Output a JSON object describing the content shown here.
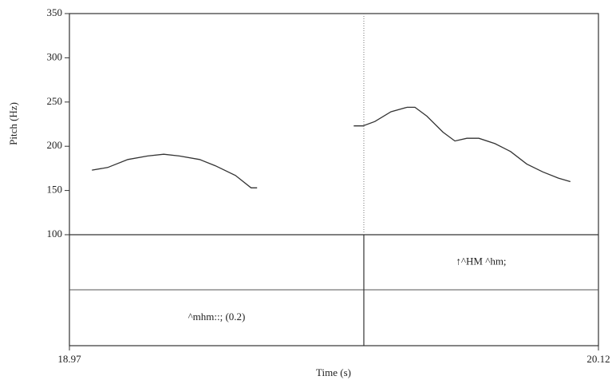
{
  "chart_data": {
    "type": "line",
    "x_label": "Time (s)",
    "y_label": "Pitch (Hz)",
    "x": [
      19.019,
      19.053,
      19.097,
      19.14,
      19.175,
      19.209,
      19.253,
      19.287,
      19.331,
      19.365,
      19.378,
      null,
      19.588,
      19.608,
      19.634,
      19.669,
      19.704,
      19.721,
      19.747,
      19.782,
      19.808,
      19.834,
      19.86,
      19.895,
      19.929,
      19.964,
      19.999,
      20.033,
      20.059
    ],
    "values": [
      173,
      176,
      185,
      189,
      191,
      189,
      185,
      178,
      167,
      153,
      153,
      null,
      223,
      223,
      228,
      239,
      244,
      244,
      234,
      216,
      206,
      209,
      209,
      203,
      194,
      180,
      171,
      164,
      160
    ],
    "color": "#333333",
    "xlim": [
      18.97,
      20.12
    ],
    "xticks": [
      18.97,
      20.12
    ],
    "ylim": [
      100,
      350
    ],
    "yticks": [
      100,
      150,
      200,
      250,
      300,
      350
    ],
    "boundary": 19.61,
    "tiers": [
      {
        "intervals": [
          {
            "start": 19.61,
            "end": 20.12,
            "text": "↑^HM ^hm;"
          }
        ]
      },
      {
        "intervals": [
          {
            "start": 18.97,
            "end": 19.61,
            "text": "^mhm::; (0.2)"
          }
        ]
      }
    ]
  }
}
